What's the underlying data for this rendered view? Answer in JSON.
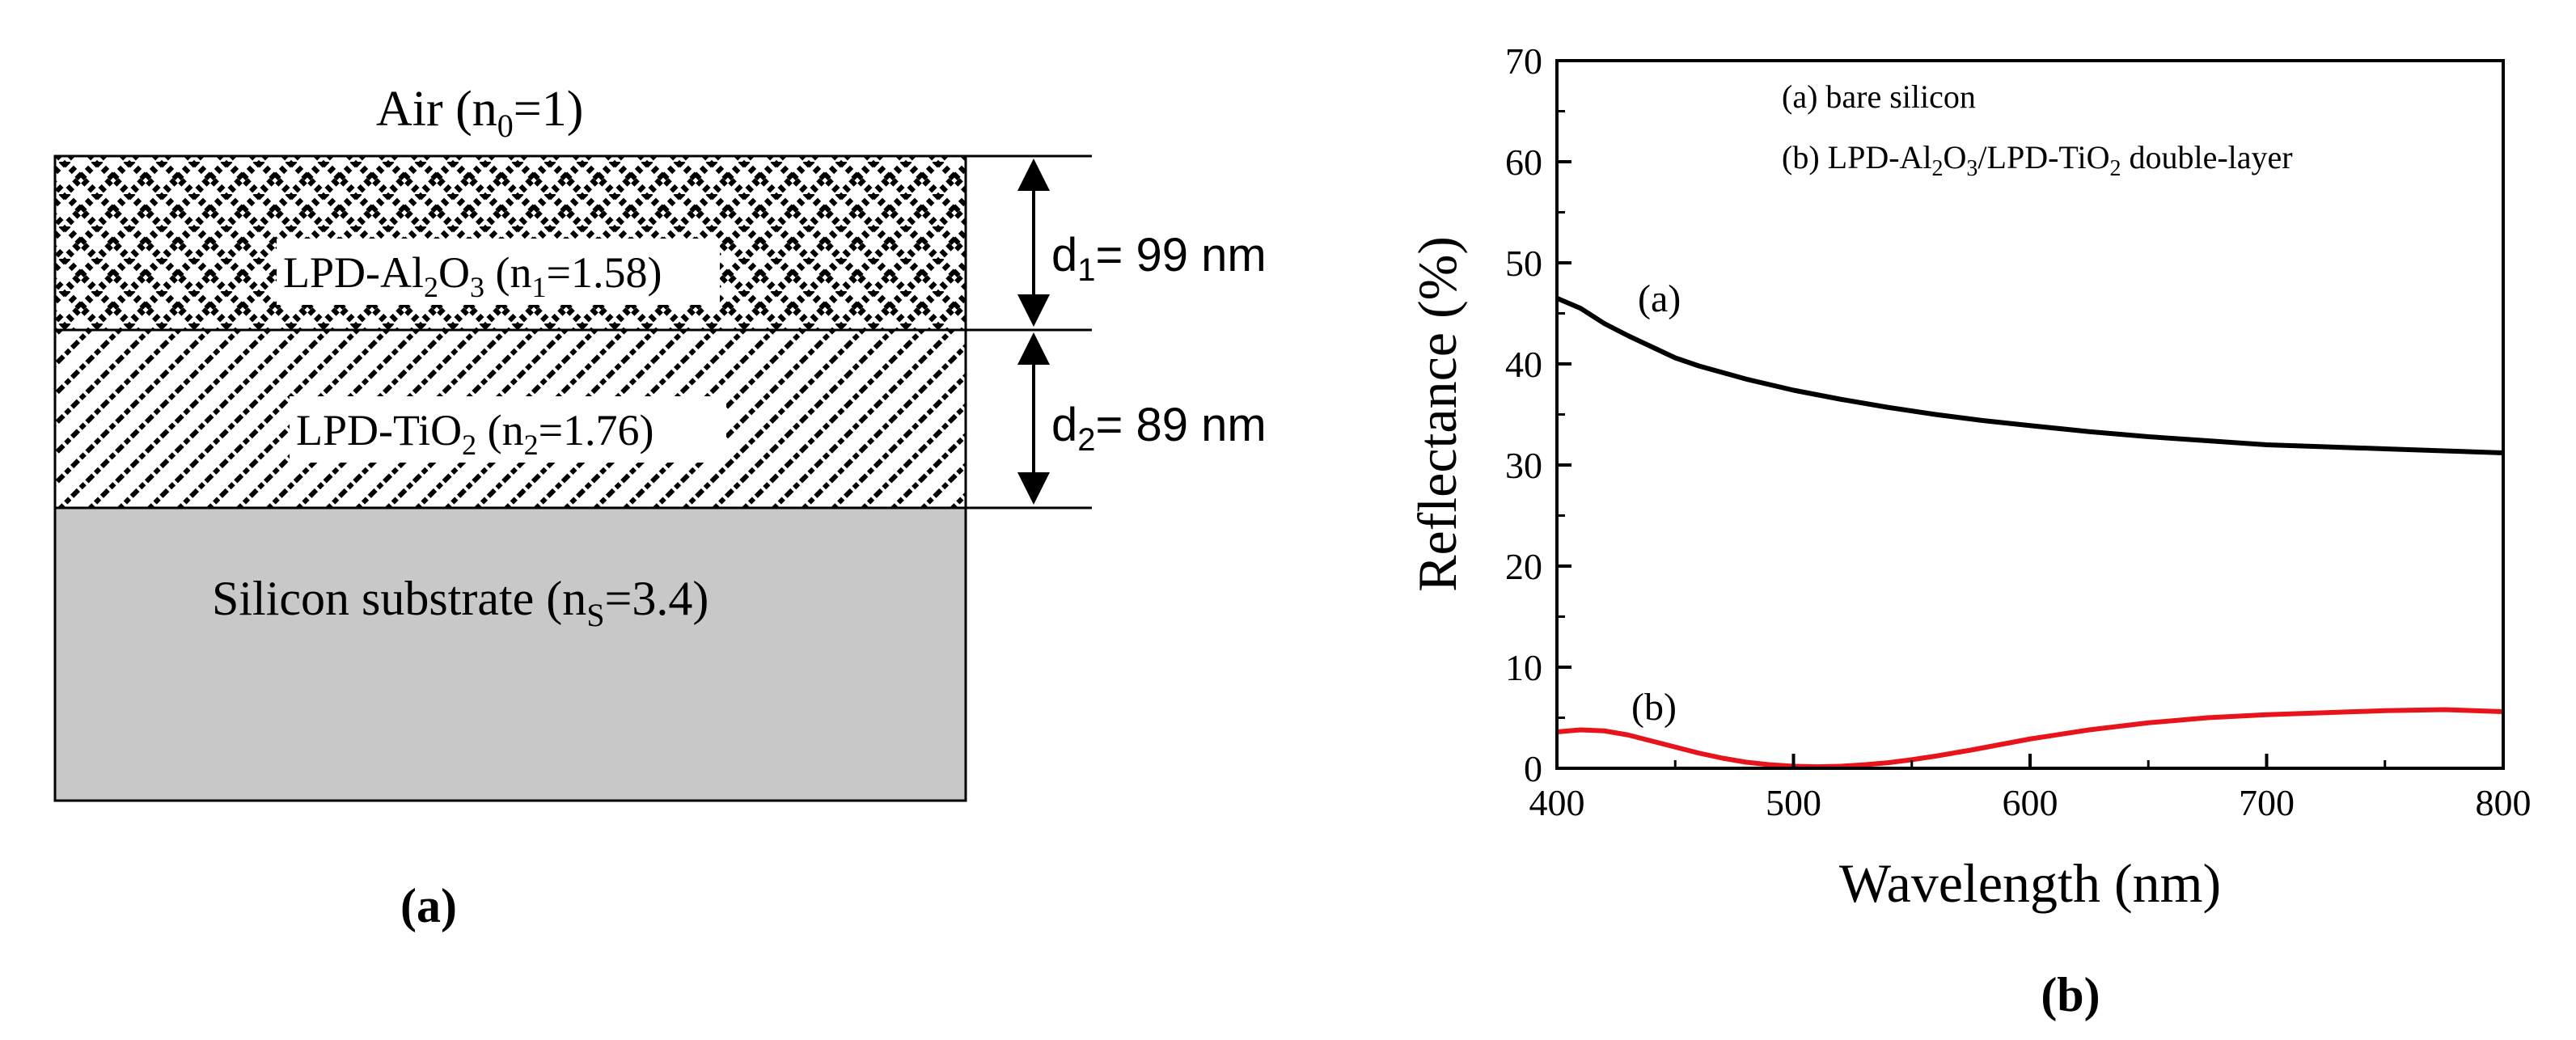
{
  "panel_a": {
    "air_label": "Air (n",
    "air_sub": "0",
    "air_tail": "=1)",
    "layer1": {
      "pre": "LPD-Al",
      "s1": "2",
      "mid": "O",
      "s2": "3",
      "tail": " (n",
      "s3": "1",
      "end": "=1.58)"
    },
    "layer2": {
      "pre": "LPD-TiO",
      "s1": "2",
      "tail": " (n",
      "s2": "2",
      "end": "=1.76)"
    },
    "substrate": {
      "pre": "Silicon substrate (n",
      "s1": "S",
      "end": "=3.4)"
    },
    "d1": {
      "pre": "d",
      "sub": "1",
      "end": "= 99 nm"
    },
    "d2": {
      "pre": "d",
      "sub": "2",
      "end": "= 89 nm"
    },
    "caption": "(a)",
    "colors": {
      "substrate_fill": "#c8c8c8",
      "outline": "#000000"
    }
  },
  "panel_b": {
    "caption": "(b)",
    "legend_a": "(a) bare silicon",
    "legend_b": {
      "pre": "(b) LPD-Al",
      "s1": "2",
      "mid1": "O",
      "s2": "3",
      "mid2": "/LPD-TiO",
      "s3": "2",
      "end": " double-layer"
    },
    "label_a": "(a)",
    "label_b": "(b)",
    "x_ticks": [
      "400",
      "500",
      "600",
      "700",
      "800"
    ],
    "y_ticks": [
      "0",
      "10",
      "20",
      "30",
      "40",
      "50",
      "60",
      "70"
    ]
  },
  "chart_data": {
    "type": "line",
    "xlabel": "Wavelength (nm)",
    "ylabel": "Reflectance (%)",
    "xlim": [
      400,
      800
    ],
    "ylim": [
      0,
      70
    ],
    "grid": false,
    "legend_position": "top-right",
    "series": [
      {
        "name": "(a) bare silicon",
        "color": "#000000",
        "x": [
          400,
          410,
          420,
          430,
          440,
          450,
          460,
          480,
          500,
          520,
          540,
          560,
          580,
          600,
          625,
          650,
          675,
          700,
          725,
          750,
          775,
          800
        ],
        "y": [
          46.5,
          45.5,
          44.0,
          42.8,
          41.7,
          40.6,
          39.8,
          38.5,
          37.4,
          36.5,
          35.7,
          35.0,
          34.4,
          33.9,
          33.3,
          32.8,
          32.4,
          32.0,
          31.8,
          31.6,
          31.4,
          31.2
        ]
      },
      {
        "name": "(b) LPD-Al2O3/LPD-TiO2 double-layer",
        "color": "#e8141b",
        "x": [
          400,
          410,
          420,
          430,
          440,
          450,
          460,
          470,
          480,
          490,
          500,
          510,
          520,
          530,
          540,
          550,
          560,
          575,
          600,
          625,
          650,
          675,
          700,
          725,
          750,
          775,
          800
        ],
        "y": [
          3.6,
          3.8,
          3.7,
          3.3,
          2.7,
          2.1,
          1.5,
          1.0,
          0.6,
          0.35,
          0.2,
          0.15,
          0.2,
          0.35,
          0.55,
          0.85,
          1.2,
          1.8,
          2.9,
          3.8,
          4.5,
          5.0,
          5.3,
          5.5,
          5.7,
          5.8,
          5.6
        ]
      }
    ]
  }
}
